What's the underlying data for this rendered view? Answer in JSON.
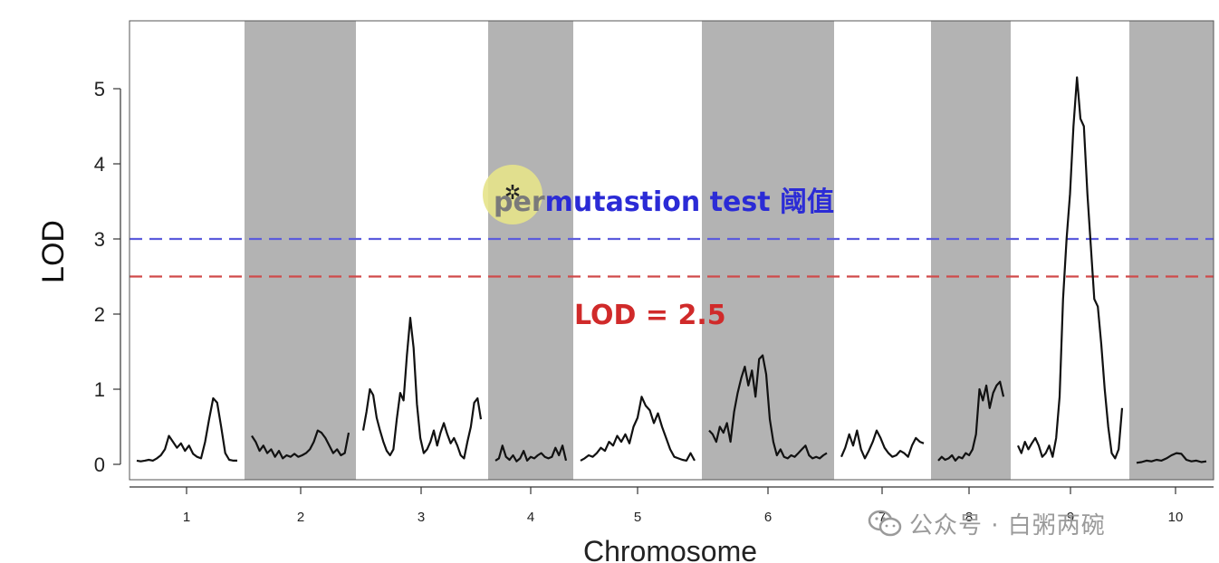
{
  "chart_data": {
    "type": "line",
    "xlabel": "Chromosome",
    "ylabel": "LOD",
    "ylim": [
      0,
      5.9
    ],
    "yticks": [
      "0",
      "1",
      "2",
      "3",
      "4",
      "5"
    ],
    "chromosomes": [
      "1",
      "2",
      "3",
      "4",
      "5",
      "6",
      "7",
      "8",
      "9",
      "10"
    ],
    "shading": [
      "white",
      "gray",
      "white",
      "gray",
      "white",
      "gray",
      "white",
      "gray",
      "white",
      "gray"
    ],
    "colors": {
      "gray_band": "#b3b3b3",
      "curve": "#111111",
      "permutation_line": "#5b5bdc",
      "lod_line": "#d04a4a",
      "permutation_text": "#2b2bd6",
      "lod_text": "#d02a2a",
      "cursor_highlight": "#e6e38a"
    },
    "thresholds": [
      {
        "value": 3.0,
        "color": "#5b5bdc",
        "style": "dashed"
      },
      {
        "value": 2.5,
        "color": "#d04a4a",
        "style": "dashed"
      }
    ],
    "annotations": {
      "permutation_prefix": "per",
      "permutation": "mutastion test 阈值",
      "lod": "LOD = 2.5"
    },
    "series": [
      {
        "chrom": "1",
        "values": [
          0.05,
          0.04,
          0.05,
          0.06,
          0.05,
          0.08,
          0.12,
          0.2,
          0.38,
          0.3,
          0.22,
          0.28,
          0.18,
          0.25,
          0.14,
          0.1,
          0.08,
          0.3,
          0.6,
          0.88,
          0.82,
          0.5,
          0.15,
          0.06,
          0.05,
          0.05
        ]
      },
      {
        "chrom": "2",
        "values": [
          0.38,
          0.3,
          0.18,
          0.25,
          0.15,
          0.2,
          0.1,
          0.18,
          0.08,
          0.12,
          0.1,
          0.14,
          0.1,
          0.12,
          0.15,
          0.2,
          0.3,
          0.45,
          0.42,
          0.35,
          0.25,
          0.15,
          0.2,
          0.12,
          0.15,
          0.42
        ]
      },
      {
        "chrom": "3",
        "values": [
          0.45,
          0.7,
          1.0,
          0.92,
          0.62,
          0.45,
          0.3,
          0.18,
          0.12,
          0.2,
          0.6,
          0.95,
          0.85,
          1.45,
          1.95,
          1.55,
          0.8,
          0.35,
          0.15,
          0.2,
          0.3,
          0.45,
          0.25,
          0.42,
          0.55,
          0.4,
          0.28,
          0.35,
          0.25,
          0.12,
          0.08,
          0.3,
          0.5,
          0.82,
          0.88,
          0.6
        ]
      },
      {
        "chrom": "4",
        "values": [
          0.05,
          0.08,
          0.25,
          0.1,
          0.06,
          0.12,
          0.04,
          0.08,
          0.18,
          0.05,
          0.1,
          0.08,
          0.12,
          0.15,
          0.1,
          0.08,
          0.1,
          0.22,
          0.12,
          0.25,
          0.05
        ]
      },
      {
        "chrom": "5",
        "values": [
          0.05,
          0.08,
          0.12,
          0.1,
          0.15,
          0.22,
          0.18,
          0.3,
          0.25,
          0.38,
          0.3,
          0.4,
          0.28,
          0.5,
          0.62,
          0.9,
          0.78,
          0.72,
          0.55,
          0.68,
          0.5,
          0.35,
          0.2,
          0.1,
          0.08,
          0.06,
          0.05,
          0.15,
          0.05
        ]
      },
      {
        "chrom": "6",
        "values": [
          0.45,
          0.4,
          0.3,
          0.5,
          0.42,
          0.55,
          0.3,
          0.7,
          0.95,
          1.15,
          1.3,
          1.05,
          1.25,
          0.9,
          1.4,
          1.45,
          1.2,
          0.6,
          0.3,
          0.12,
          0.2,
          0.1,
          0.08,
          0.12,
          0.1,
          0.15,
          0.2,
          0.25,
          0.12,
          0.08,
          0.1,
          0.08,
          0.12,
          0.15
        ]
      },
      {
        "chrom": "7",
        "values": [
          0.1,
          0.22,
          0.4,
          0.25,
          0.45,
          0.2,
          0.08,
          0.18,
          0.3,
          0.45,
          0.35,
          0.22,
          0.15,
          0.1,
          0.12,
          0.18,
          0.15,
          0.1,
          0.25,
          0.35,
          0.3,
          0.28
        ]
      },
      {
        "chrom": "8",
        "values": [
          0.05,
          0.1,
          0.06,
          0.08,
          0.12,
          0.05,
          0.1,
          0.08,
          0.15,
          0.12,
          0.2,
          0.4,
          1.0,
          0.85,
          1.05,
          0.75,
          0.95,
          1.05,
          1.1,
          0.9
        ]
      },
      {
        "chrom": "9",
        "values": [
          0.25,
          0.15,
          0.3,
          0.2,
          0.28,
          0.35,
          0.25,
          0.1,
          0.15,
          0.25,
          0.1,
          0.35,
          0.9,
          2.2,
          3.0,
          3.6,
          4.5,
          5.15,
          4.6,
          4.5,
          3.6,
          2.9,
          2.2,
          2.1,
          1.6,
          1.0,
          0.5,
          0.15,
          0.08,
          0.2,
          0.75
        ]
      },
      {
        "chrom": "10",
        "values": [
          0.02,
          0.03,
          0.05,
          0.04,
          0.06,
          0.05,
          0.08,
          0.12,
          0.15,
          0.14,
          0.06,
          0.04,
          0.05,
          0.03,
          0.04
        ]
      }
    ]
  },
  "watermark": {
    "text": "公众号 · 白粥两碗"
  }
}
